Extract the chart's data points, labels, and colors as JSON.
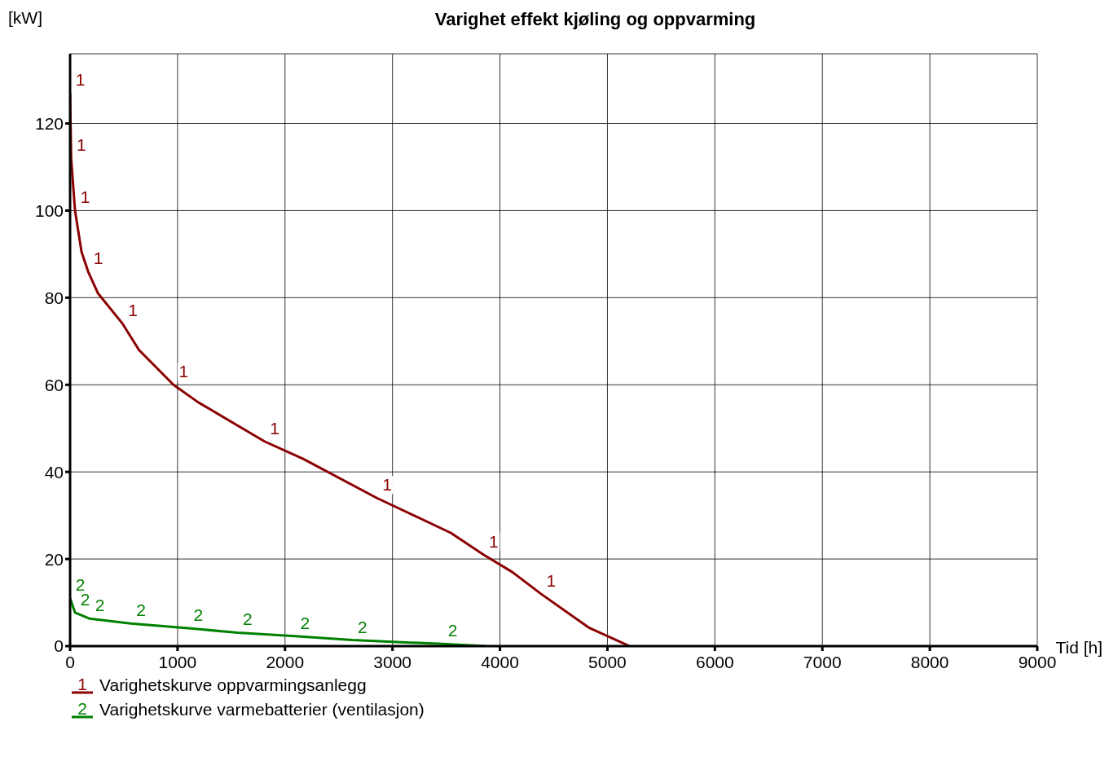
{
  "chart_data": {
    "type": "line",
    "title": "Varighet effekt kjøling og oppvarming",
    "xlabel": "Tid [h]",
    "ylabel": "[kW]",
    "xlim": [
      0,
      9000
    ],
    "xticks": [
      0,
      1000,
      2000,
      3000,
      4000,
      5000,
      6000,
      7000,
      8000,
      9000
    ],
    "ylim": [
      0,
      136
    ],
    "yticks": [
      0,
      20,
      40,
      60,
      80,
      100,
      120
    ],
    "grid": true,
    "legend": "bottom",
    "marker": "none",
    "line_style": "solid",
    "annotations": [
      "1",
      "2",
      {
        "text": "1",
        "x": 0,
        "y": 127
      },
      {
        "text": "1",
        "x": 10,
        "y": 112
      },
      {
        "text": "1",
        "x": 46,
        "y": 100
      },
      {
        "text": "1",
        "x": 168,
        "y": 86
      },
      {
        "text": "1",
        "x": 489,
        "y": 74
      },
      {
        "text": "1",
        "x": 962,
        "y": 60
      },
      {
        "text": "1",
        "x": 1809,
        "y": 47
      },
      {
        "text": "1",
        "x": 2855,
        "y": 34
      },
      {
        "text": "1",
        "x": 3847,
        "y": 21
      },
      {
        "text": "1",
        "x": 4382,
        "y": 12
      },
      {
        "text": "2",
        "x": 0,
        "y": 11
      },
      {
        "text": "2",
        "x": 46,
        "y": 7.7
      },
      {
        "text": "2",
        "x": 183,
        "y": 6.3
      },
      {
        "text": "2",
        "x": 565,
        "y": 5.2
      },
      {
        "text": "2",
        "x": 1099,
        "y": 4.1
      },
      {
        "text": "2",
        "x": 1557,
        "y": 3.1
      },
      {
        "text": "2",
        "x": 2092,
        "y": 2.3
      },
      {
        "text": "2",
        "x": 2626,
        "y": 1.4
      },
      {
        "text": "2",
        "x": 3466,
        "y": 0.5
      }
    ],
    "series": [
      {
        "name": "Varighetskurve oppvarmingsanlegg",
        "color": "#8b0000",
        "x": [
          0,
          10,
          46,
          107,
          168,
          260,
          489,
          641,
          962,
          1191,
          1809,
          2168,
          2855,
          3542,
          3847,
          4115,
          4382,
          4824,
          5206
        ],
        "values": [
          127,
          112,
          100,
          90.5,
          86,
          81,
          74,
          68,
          60,
          56,
          47,
          43,
          34,
          26,
          21,
          17,
          12,
          4.3,
          0
        ]
      },
      {
        "name": "Varighetskurve varmebatterier (ventilasjon)",
        "color": "#008000",
        "x": [
          0,
          46,
          183,
          565,
          1099,
          1557,
          2092,
          2626,
          3466,
          3870
        ],
        "values": [
          11,
          7.7,
          6.3,
          5.2,
          4.1,
          3.1,
          2.3,
          1.4,
          0.5,
          0
        ]
      }
    ]
  }
}
